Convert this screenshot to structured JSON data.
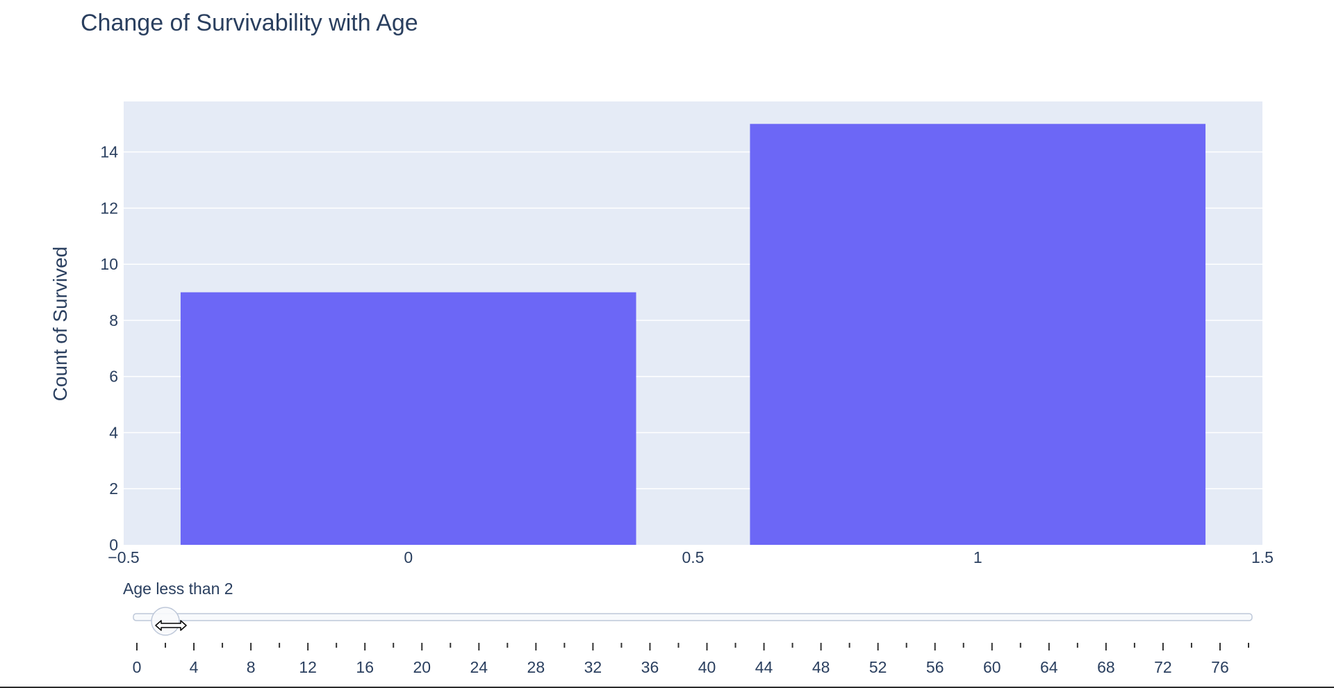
{
  "chart_data": {
    "type": "bar",
    "title": "Change of Survivability with Age",
    "xlabel": "",
    "ylabel": "Count of Survived",
    "x": [
      0,
      1
    ],
    "values": [
      9,
      15
    ],
    "bar_width": 0.8,
    "xlim": [
      -0.5,
      1.5
    ],
    "x_ticks": [
      "−0.5",
      "0",
      "0.5",
      "1",
      "1.5"
    ],
    "x_tick_values": [
      -0.5,
      0,
      0.5,
      1,
      1.5
    ],
    "ylim": [
      0,
      15.8
    ],
    "y_ticks": [
      0,
      2,
      4,
      6,
      8,
      10,
      12,
      14
    ],
    "grid": true,
    "colors": {
      "bar": "#6c67f6",
      "plot_bg": "#e5ebf6",
      "grid": "#ffffff",
      "text": "#2a3f5f"
    }
  },
  "slider": {
    "current_label": "Age less than 2",
    "value": 2,
    "min": 0,
    "max": 78,
    "major_ticks": [
      0,
      4,
      8,
      12,
      16,
      20,
      24,
      28,
      32,
      36,
      40,
      44,
      48,
      52,
      56,
      60,
      64,
      68,
      72,
      76
    ],
    "minor_ticks": [
      2,
      6,
      10,
      14,
      18,
      22,
      26,
      30,
      34,
      38,
      42,
      46,
      50,
      54,
      58,
      62,
      66,
      70,
      74,
      78
    ],
    "colors": {
      "rail": "#f8fafc",
      "rail_border": "#bec8d9",
      "handle": "#f8fafc",
      "handle_border": "#bec8d9"
    }
  }
}
